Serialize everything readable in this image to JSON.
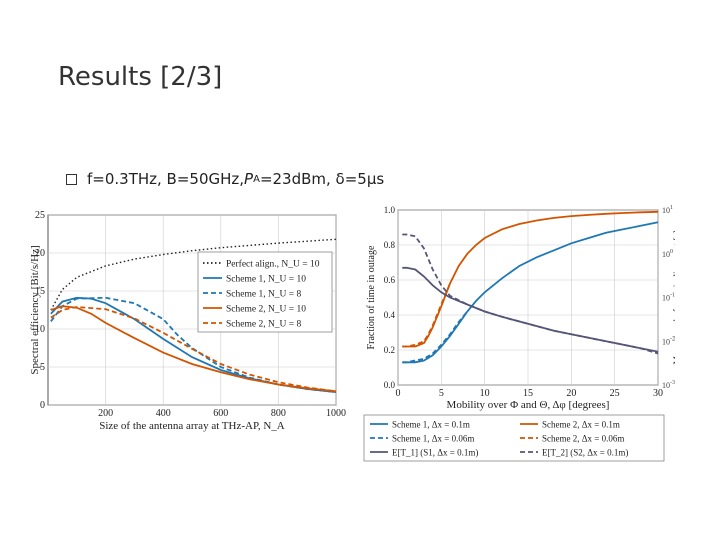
{
  "slide": {
    "title": "Results [2/3]",
    "bullet": {
      "text_main": "f=0.3THz, B=50GHz, ",
      "p_symbol": "P",
      "p_subscript": "A",
      "text_rest": "=23dBm, δ=5μs"
    }
  },
  "chart_data": [
    {
      "type": "line",
      "title": "",
      "xlabel": "Size of the antenna array at THz-AP, N_A",
      "ylabel": "Spectral efficiency [Bit/s/Hz]",
      "xlim": [
        0,
        1000
      ],
      "ylim": [
        0,
        25
      ],
      "xticks": [
        200,
        400,
        600,
        800,
        1000
      ],
      "yticks": [
        0,
        5,
        10,
        15,
        20,
        25
      ],
      "grid": true,
      "legend": "upper-right",
      "series": [
        {
          "name": "Perfect align., N_U = 10",
          "color": "#222222",
          "dash": "dot",
          "x": [
            10,
            50,
            100,
            200,
            300,
            400,
            500,
            600,
            700,
            800,
            900,
            1000
          ],
          "y": [
            12.5,
            15.2,
            16.8,
            18.3,
            19.2,
            19.8,
            20.3,
            20.7,
            21.0,
            21.3,
            21.55,
            21.8
          ]
        },
        {
          "name": "Scheme 1, N_U = 10",
          "color": "#1f77b4",
          "dash": "solid",
          "x": [
            10,
            50,
            100,
            150,
            200,
            300,
            400,
            500,
            600,
            700,
            800,
            900,
            1000
          ],
          "y": [
            12.0,
            13.6,
            14.1,
            14.0,
            13.4,
            11.3,
            8.7,
            6.3,
            4.6,
            3.5,
            2.7,
            2.1,
            1.7
          ]
        },
        {
          "name": "Scheme 1, N_U = 8",
          "color": "#1f77b4",
          "dash": "dash",
          "x": [
            10,
            50,
            100,
            200,
            300,
            400,
            450,
            500,
            600,
            700,
            800,
            900,
            1000
          ],
          "y": [
            11.0,
            13.0,
            14.0,
            14.1,
            13.4,
            11.3,
            9.2,
            7.5,
            5.0,
            3.6,
            2.7,
            2.1,
            1.7
          ]
        },
        {
          "name": "Scheme 2, N_U = 10",
          "color": "#d35400",
          "dash": "solid",
          "x": [
            10,
            50,
            100,
            150,
            200,
            300,
            400,
            500,
            600,
            700,
            800,
            900,
            1000
          ],
          "y": [
            12.5,
            13.0,
            12.8,
            12.0,
            10.8,
            8.8,
            6.9,
            5.4,
            4.3,
            3.4,
            2.7,
            2.2,
            1.8
          ]
        },
        {
          "name": "Scheme 2, N_U = 8",
          "color": "#d35400",
          "dash": "dash",
          "x": [
            10,
            50,
            100,
            200,
            300,
            400,
            500,
            600,
            700,
            800,
            900,
            1000
          ],
          "y": [
            11.5,
            12.5,
            12.9,
            12.6,
            11.4,
            9.5,
            7.4,
            5.4,
            4.0,
            3.0,
            2.3,
            1.8
          ]
        }
      ]
    },
    {
      "type": "line",
      "title": "",
      "xlabel": "Mobility over Φ and Θ, Δφ [degrees]",
      "ylabel": "Fraction of time in outage",
      "y2label": "Mean time before misalignment [s]",
      "xlim": [
        0,
        30
      ],
      "ylim": [
        0,
        1.0
      ],
      "xticks": [
        0,
        5,
        10,
        15,
        20,
        25,
        30
      ],
      "yticks": [
        0.0,
        0.2,
        0.4,
        0.6,
        0.8,
        1.0
      ],
      "y2ticks": [
        "10^1",
        "10^0",
        "10^-1",
        "10^-2",
        "10^-3"
      ],
      "y2lim_log10": [
        -3,
        1
      ],
      "grid": true,
      "legend": "bottom-outside",
      "series": [
        {
          "name": "Scheme 1, Δx = 0.1m",
          "color": "#1f77b4",
          "dash": "solid",
          "axis": "left",
          "x": [
            0.5,
            1,
            2,
            3,
            4,
            5,
            6,
            7,
            8,
            9,
            10,
            12,
            14,
            16,
            18,
            20,
            22,
            24,
            26,
            28,
            30
          ],
          "y": [
            0.13,
            0.13,
            0.13,
            0.14,
            0.17,
            0.22,
            0.28,
            0.35,
            0.42,
            0.48,
            0.53,
            0.61,
            0.68,
            0.73,
            0.77,
            0.81,
            0.84,
            0.87,
            0.89,
            0.91,
            0.93
          ]
        },
        {
          "name": "Scheme 2, Δx = 0.1m",
          "color": "#d35400",
          "dash": "solid",
          "axis": "left",
          "x": [
            0.5,
            1,
            2,
            3,
            3.5,
            4,
            5,
            6,
            7,
            8,
            9,
            10,
            12,
            14,
            16,
            18,
            20,
            22,
            24,
            26,
            28,
            30
          ],
          "y": [
            0.22,
            0.22,
            0.22,
            0.24,
            0.28,
            0.33,
            0.45,
            0.58,
            0.68,
            0.75,
            0.8,
            0.84,
            0.89,
            0.92,
            0.94,
            0.955,
            0.965,
            0.972,
            0.978,
            0.983,
            0.987,
            0.99
          ]
        },
        {
          "name": "Scheme 1, Δx = 0.06m",
          "color": "#1f77b4",
          "dash": "dash",
          "axis": "left",
          "x": [
            0.5,
            1,
            2,
            3,
            4,
            5,
            6,
            7,
            8
          ],
          "y": [
            0.13,
            0.13,
            0.14,
            0.15,
            0.18,
            0.23,
            0.29,
            0.36,
            0.42
          ]
        },
        {
          "name": "Scheme 2, Δx = 0.06m",
          "color": "#d35400",
          "dash": "dash",
          "axis": "left",
          "x": [
            0.5,
            1,
            2,
            3,
            3.5,
            4,
            5,
            6
          ],
          "y": [
            0.22,
            0.22,
            0.23,
            0.25,
            0.29,
            0.34,
            0.46,
            0.58
          ]
        },
        {
          "name": "E[T_1] (S1, Δx = 0.1m)",
          "color": "#555577",
          "dash": "solid",
          "axis": "right",
          "x": [
            0.5,
            1,
            2,
            3,
            4,
            5,
            6,
            8,
            10,
            12,
            15,
            18,
            20,
            22,
            25,
            28,
            30
          ],
          "y": [
            0.67,
            0.67,
            0.66,
            0.62,
            0.57,
            0.53,
            0.5,
            0.46,
            0.42,
            0.39,
            0.35,
            0.31,
            0.29,
            0.27,
            0.24,
            0.21,
            0.19
          ]
        },
        {
          "name": "E[T_2] (S2, Δx = 0.1m)",
          "color": "#555577",
          "dash": "dash",
          "axis": "right",
          "x": [
            0.5,
            1,
            2,
            3,
            4,
            5,
            6,
            8,
            10,
            12,
            15,
            18,
            20,
            22,
            25,
            28,
            30
          ],
          "y": [
            0.86,
            0.86,
            0.85,
            0.78,
            0.66,
            0.57,
            0.51,
            0.46,
            0.42,
            0.39,
            0.35,
            0.31,
            0.29,
            0.27,
            0.24,
            0.21,
            0.18
          ]
        }
      ]
    }
  ]
}
